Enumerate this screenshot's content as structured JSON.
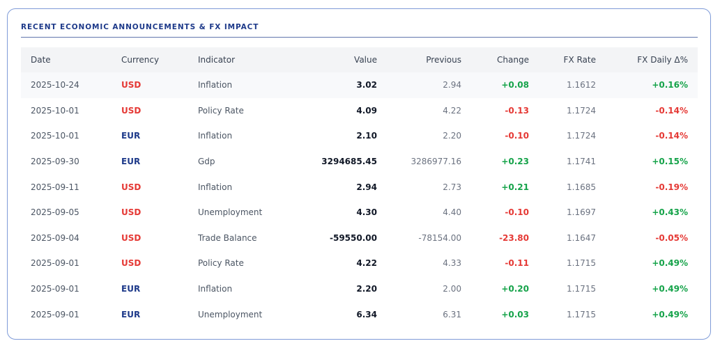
{
  "title": "RECENT ECONOMIC ANNOUNCEMENTS & FX IMPACT",
  "table": {
    "header": [
      "Date",
      "Currency",
      "Indicator",
      "Value",
      "Previous",
      "Change",
      "FX Rate",
      "FX Daily Δ%"
    ],
    "rows": [
      [
        "2025-10-24",
        "USD",
        "Inflation",
        "3.02",
        "2.94",
        "+0.08",
        "1.1612",
        "+0.16%"
      ],
      [
        "2025-10-01",
        "USD",
        "Policy Rate",
        "4.09",
        "4.22",
        "-0.13",
        "1.1724",
        "-0.14%"
      ],
      [
        "2025-10-01",
        "EUR",
        "Inflation",
        "2.10",
        "2.20",
        "-0.10",
        "1.1724",
        "-0.14%"
      ],
      [
        "2025-09-30",
        "EUR",
        "Gdp",
        "3294685.45",
        "3286977.16",
        "+0.23",
        "1.1741",
        "+0.15%"
      ],
      [
        "2025-09-11",
        "USD",
        "Inflation",
        "2.94",
        "2.73",
        "+0.21",
        "1.1685",
        "-0.19%"
      ],
      [
        "2025-09-05",
        "USD",
        "Unemployment",
        "4.30",
        "4.40",
        "-0.10",
        "1.1697",
        "+0.43%"
      ],
      [
        "2025-09-04",
        "USD",
        "Trade Balance",
        "-59550.00",
        "-78154.00",
        "-23.80",
        "1.1647",
        "-0.05%"
      ],
      [
        "2025-09-01",
        "USD",
        "Policy Rate",
        "4.22",
        "4.33",
        "-0.11",
        "1.1715",
        "+0.49%"
      ],
      [
        "2025-09-01",
        "EUR",
        "Inflation",
        "2.20",
        "2.00",
        "+0.20",
        "1.1715",
        "+0.49%"
      ],
      [
        "2025-09-01",
        "EUR",
        "Unemployment",
        "6.34",
        "6.31",
        "+0.03",
        "1.1715",
        "+0.49%"
      ]
    ],
    "currency_colors": {
      "USD": "#e53935",
      "EUR": "#1e3a8a"
    },
    "positive_color": "#16a34a",
    "negative_color": "#e53935"
  }
}
